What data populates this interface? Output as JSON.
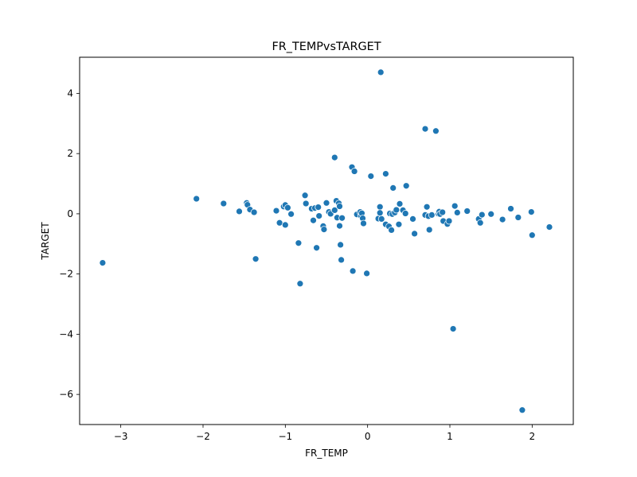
{
  "chart_data": {
    "type": "scatter",
    "title": "FR_TEMPvsTARGET",
    "xlabel": "FR_TEMP",
    "ylabel": "TARGET",
    "xlim": [
      -3.5,
      2.5
    ],
    "ylim": [
      -7.0,
      5.2
    ],
    "xticks": [
      -3,
      -2,
      -1,
      0,
      1,
      2
    ],
    "yticks": [
      -6,
      -4,
      -2,
      0,
      2,
      4
    ],
    "xtick_labels": [
      "−3",
      "−2",
      "−1",
      "0",
      "1",
      "2"
    ],
    "ytick_labels": [
      "−6",
      "−4",
      "−2",
      "0",
      "2",
      "4"
    ],
    "grid": false,
    "marker_color": "#1f77b4",
    "points": [
      {
        "x": -3.22,
        "y": -1.63
      },
      {
        "x": -2.08,
        "y": 0.5
      },
      {
        "x": -1.75,
        "y": 0.34
      },
      {
        "x": -1.56,
        "y": 0.08
      },
      {
        "x": -1.47,
        "y": 0.36
      },
      {
        "x": -1.46,
        "y": 0.3
      },
      {
        "x": -1.43,
        "y": 0.14
      },
      {
        "x": -1.38,
        "y": 0.05
      },
      {
        "x": -1.36,
        "y": -1.5
      },
      {
        "x": -1.11,
        "y": 0.1
      },
      {
        "x": -1.07,
        "y": -0.3
      },
      {
        "x": -1.02,
        "y": 0.24
      },
      {
        "x": -1.0,
        "y": 0.29
      },
      {
        "x": -1.0,
        "y": -0.37
      },
      {
        "x": -0.97,
        "y": 0.2
      },
      {
        "x": -0.93,
        "y": -0.01
      },
      {
        "x": -0.84,
        "y": -0.97
      },
      {
        "x": -0.82,
        "y": -2.32
      },
      {
        "x": -0.76,
        "y": 0.61
      },
      {
        "x": -0.75,
        "y": 0.34
      },
      {
        "x": -0.68,
        "y": 0.17
      },
      {
        "x": -0.66,
        "y": -0.22
      },
      {
        "x": -0.64,
        "y": 0.19
      },
      {
        "x": -0.62,
        "y": -1.13
      },
      {
        "x": -0.6,
        "y": 0.22
      },
      {
        "x": -0.59,
        "y": -0.07
      },
      {
        "x": -0.54,
        "y": -0.41
      },
      {
        "x": -0.53,
        "y": -0.52
      },
      {
        "x": -0.5,
        "y": 0.36
      },
      {
        "x": -0.47,
        "y": 0.06
      },
      {
        "x": -0.45,
        "y": 0.0
      },
      {
        "x": -0.4,
        "y": 1.87
      },
      {
        "x": -0.4,
        "y": 0.12
      },
      {
        "x": -0.38,
        "y": 0.43
      },
      {
        "x": -0.37,
        "y": -0.13
      },
      {
        "x": -0.35,
        "y": 0.35
      },
      {
        "x": -0.34,
        "y": 0.25
      },
      {
        "x": -0.34,
        "y": -0.4
      },
      {
        "x": -0.33,
        "y": -1.03
      },
      {
        "x": -0.32,
        "y": -1.53
      },
      {
        "x": -0.31,
        "y": -0.14
      },
      {
        "x": -0.19,
        "y": 1.55
      },
      {
        "x": -0.18,
        "y": -1.9
      },
      {
        "x": -0.16,
        "y": 1.41
      },
      {
        "x": -0.13,
        "y": -0.02
      },
      {
        "x": -0.09,
        "y": 0.06
      },
      {
        "x": -0.08,
        "y": -0.07
      },
      {
        "x": -0.07,
        "y": 0.02
      },
      {
        "x": -0.06,
        "y": -0.15
      },
      {
        "x": -0.05,
        "y": -0.32
      },
      {
        "x": -0.01,
        "y": -1.98
      },
      {
        "x": 0.04,
        "y": 1.25
      },
      {
        "x": 0.13,
        "y": -0.16
      },
      {
        "x": 0.15,
        "y": 0.23
      },
      {
        "x": 0.15,
        "y": 0.03
      },
      {
        "x": 0.16,
        "y": 4.7
      },
      {
        "x": 0.17,
        "y": -0.17
      },
      {
        "x": 0.22,
        "y": 1.33
      },
      {
        "x": 0.22,
        "y": -0.35
      },
      {
        "x": 0.26,
        "y": -0.42
      },
      {
        "x": 0.27,
        "y": 0.01
      },
      {
        "x": 0.29,
        "y": -0.54
      },
      {
        "x": 0.3,
        "y": -0.01
      },
      {
        "x": 0.31,
        "y": 0.86
      },
      {
        "x": 0.33,
        "y": 0.04
      },
      {
        "x": 0.35,
        "y": 0.13
      },
      {
        "x": 0.38,
        "y": -0.35
      },
      {
        "x": 0.39,
        "y": 0.33
      },
      {
        "x": 0.43,
        "y": 0.12
      },
      {
        "x": 0.46,
        "y": 0.01
      },
      {
        "x": 0.47,
        "y": 0.93
      },
      {
        "x": 0.55,
        "y": -0.17
      },
      {
        "x": 0.57,
        "y": -0.66
      },
      {
        "x": 0.7,
        "y": 2.82
      },
      {
        "x": 0.7,
        "y": -0.04
      },
      {
        "x": 0.72,
        "y": 0.23
      },
      {
        "x": 0.74,
        "y": -0.08
      },
      {
        "x": 0.75,
        "y": -0.53
      },
      {
        "x": 0.78,
        "y": -0.04
      },
      {
        "x": 0.83,
        "y": 2.75
      },
      {
        "x": 0.86,
        "y": 0.0
      },
      {
        "x": 0.87,
        "y": 0.07
      },
      {
        "x": 0.88,
        "y": -0.01
      },
      {
        "x": 0.91,
        "y": 0.05
      },
      {
        "x": 0.92,
        "y": -0.24
      },
      {
        "x": 0.97,
        "y": -0.34
      },
      {
        "x": 0.99,
        "y": -0.24
      },
      {
        "x": 1.04,
        "y": -3.82
      },
      {
        "x": 1.06,
        "y": 0.26
      },
      {
        "x": 1.09,
        "y": 0.04
      },
      {
        "x": 1.21,
        "y": 0.09
      },
      {
        "x": 1.35,
        "y": -0.17
      },
      {
        "x": 1.37,
        "y": -0.3
      },
      {
        "x": 1.39,
        "y": -0.03
      },
      {
        "x": 1.5,
        "y": -0.01
      },
      {
        "x": 1.64,
        "y": -0.19
      },
      {
        "x": 1.74,
        "y": 0.17
      },
      {
        "x": 1.83,
        "y": -0.12
      },
      {
        "x": 1.88,
        "y": -6.52
      },
      {
        "x": 1.99,
        "y": 0.06
      },
      {
        "x": 2.0,
        "y": -0.71
      },
      {
        "x": 2.21,
        "y": -0.44
      }
    ]
  }
}
